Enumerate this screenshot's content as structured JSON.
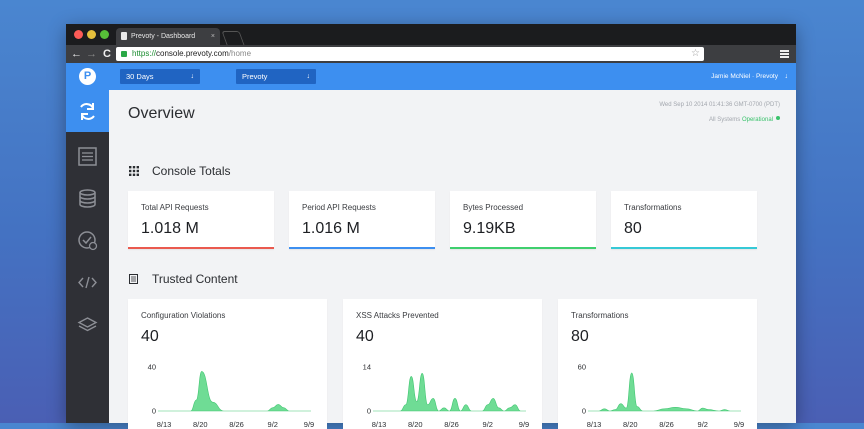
{
  "browser": {
    "tab_title": "Prevoty - Dashboard",
    "tab_close": "×",
    "url_https": "https://",
    "url_host": "console.prevoty.com",
    "url_path": "/home",
    "nav_back": "←",
    "nav_forward": "→",
    "nav_reload": "C",
    "star": "☆"
  },
  "header": {
    "logo": "P",
    "range_select": {
      "value": "30 Days",
      "caret": "↓"
    },
    "project_select": {
      "value": "Prevoty",
      "caret": "↓"
    },
    "user": "Jamie McNiel · Prevoty",
    "user_caret": "↓"
  },
  "sidebar": {
    "items": [
      {
        "icon": "refresh-icon",
        "active": true
      },
      {
        "icon": "list-icon",
        "active": false
      },
      {
        "icon": "database-icon",
        "active": false
      },
      {
        "icon": "check-settings-icon",
        "active": false
      },
      {
        "icon": "code-icon",
        "active": false
      },
      {
        "icon": "layers-icon",
        "active": false
      }
    ]
  },
  "overview": {
    "title": "Overview",
    "timestamp": "Wed Sep 10 2014 01:41:36 GMT-0700 (PDT)",
    "status_prefix": "All Systems ",
    "status_word": "Operational"
  },
  "console_totals": {
    "title": "Console Totals",
    "cards": [
      {
        "label": "Total API Requests",
        "value": "1.018 M",
        "color": "#ea5a4f"
      },
      {
        "label": "Period API Requests",
        "value": "1.016 M",
        "color": "#3d8ff0"
      },
      {
        "label": "Bytes Processed",
        "value": "9.19KB",
        "color": "#3fcf6e"
      },
      {
        "label": "Transformations",
        "value": "80",
        "color": "#36c9d6"
      }
    ]
  },
  "trusted_content": {
    "title": "Trusted Content",
    "cards": [
      {
        "label": "Configuration Violations",
        "value": "40"
      },
      {
        "label": "XSS Attacks Prevented",
        "value": "40"
      },
      {
        "label": "Transformations",
        "value": "80"
      }
    ]
  },
  "chart_data": [
    {
      "type": "area",
      "title": "Configuration Violations",
      "categories": [
        "8/13",
        "8/20",
        "8/26",
        "9/2",
        "9/9"
      ],
      "ylim": [
        0,
        40
      ],
      "yticks": [
        "0",
        "40"
      ],
      "x": [
        0,
        2,
        4,
        5,
        6,
        7,
        8,
        10,
        12,
        14,
        16,
        18,
        20,
        21,
        22,
        23,
        24,
        26,
        28
      ],
      "values": [
        0,
        0,
        0,
        0,
        0,
        10,
        36,
        8,
        0,
        0,
        0,
        0,
        0,
        3,
        6,
        3,
        0,
        0,
        0
      ],
      "grid": false,
      "color": "#6fdc95"
    },
    {
      "type": "area",
      "title": "XSS Attacks Prevented",
      "categories": [
        "8/13",
        "8/20",
        "8/26",
        "9/2",
        "9/9"
      ],
      "ylim": [
        0,
        14
      ],
      "yticks": [
        "0",
        "14"
      ],
      "x": [
        0,
        2,
        4,
        5,
        6,
        7,
        8,
        9,
        10,
        11,
        12,
        13,
        14,
        15,
        16,
        17,
        18,
        19,
        20,
        21,
        22,
        23,
        24,
        25,
        26,
        27,
        28
      ],
      "values": [
        0,
        0,
        0,
        0,
        2,
        11,
        3,
        12,
        2,
        4,
        0,
        1,
        0,
        4,
        0,
        2,
        0,
        0,
        0,
        2,
        4,
        1,
        0,
        1,
        2,
        0,
        0
      ],
      "grid": false,
      "color": "#6fdc95"
    },
    {
      "type": "area",
      "title": "Transformations",
      "categories": [
        "8/13",
        "8/20",
        "8/26",
        "9/2",
        "9/9"
      ],
      "ylim": [
        0,
        60
      ],
      "yticks": [
        "0",
        "60"
      ],
      "x": [
        0,
        2,
        3,
        4,
        5,
        6,
        7,
        8,
        9,
        10,
        12,
        14,
        16,
        18,
        20,
        21,
        22,
        24,
        25,
        26,
        28
      ],
      "values": [
        0,
        0,
        3,
        0,
        2,
        10,
        4,
        52,
        6,
        0,
        0,
        3,
        5,
        3,
        0,
        4,
        2,
        0,
        2,
        0,
        0
      ],
      "grid": false,
      "color": "#6fdc95"
    }
  ]
}
